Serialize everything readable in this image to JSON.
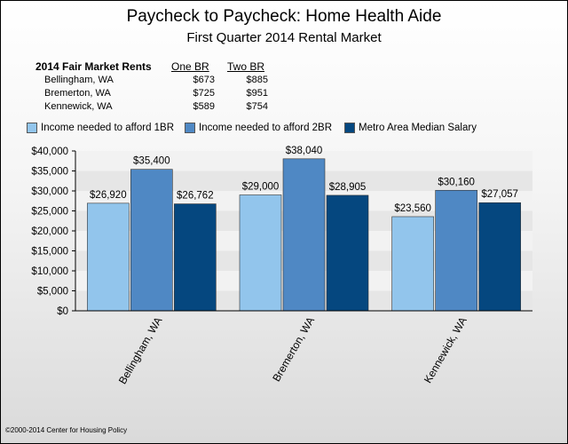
{
  "header": {
    "title": "Paycheck to Paycheck: Home Health Aide",
    "subtitle": "First Quarter 2014 Rental Market"
  },
  "fmr_table": {
    "heading": "2014 Fair Market Rents",
    "col_one": "One BR",
    "col_two": "Two BR",
    "rows": [
      {
        "city": "Bellingham, WA",
        "one_br": "$673",
        "two_br": "$885"
      },
      {
        "city": "Bremerton, WA",
        "one_br": "$725",
        "two_br": "$951"
      },
      {
        "city": "Kennewick, WA",
        "one_br": "$589",
        "two_br": "$754"
      }
    ]
  },
  "chart_data": {
    "type": "bar",
    "categories": [
      "Bellingham, WA",
      "Bremerton, WA",
      "Kennewick, WA"
    ],
    "series": [
      {
        "name": "Income needed to afford 1BR",
        "values": [
          26920,
          29000,
          23560
        ],
        "labels": [
          "$26,920",
          "$29,000",
          "$23,560"
        ],
        "color": "#92c5ec"
      },
      {
        "name": "Income needed to afford 2BR",
        "values": [
          35400,
          38040,
          30160
        ],
        "labels": [
          "$35,400",
          "$38,040",
          "$30,160"
        ],
        "color": "#4f88c4"
      },
      {
        "name": "Metro Area Median Salary",
        "values": [
          26762,
          28905,
          27057
        ],
        "labels": [
          "$26,762",
          "$28,905",
          "$27,057"
        ],
        "color": "#05477f"
      }
    ],
    "ylim": [
      0,
      40000
    ],
    "yticks": [
      0,
      5000,
      10000,
      15000,
      20000,
      25000,
      30000,
      35000,
      40000
    ],
    "ytick_labels": [
      "$0",
      "$5,000",
      "$10,000",
      "$15,000",
      "$20,000",
      "$25,000",
      "$30,000",
      "$35,000",
      "$40,000"
    ],
    "legend_position": "top",
    "grid": "horizontal bands"
  },
  "footer": {
    "copyright": "©2000-2014 Center for Housing Policy"
  }
}
